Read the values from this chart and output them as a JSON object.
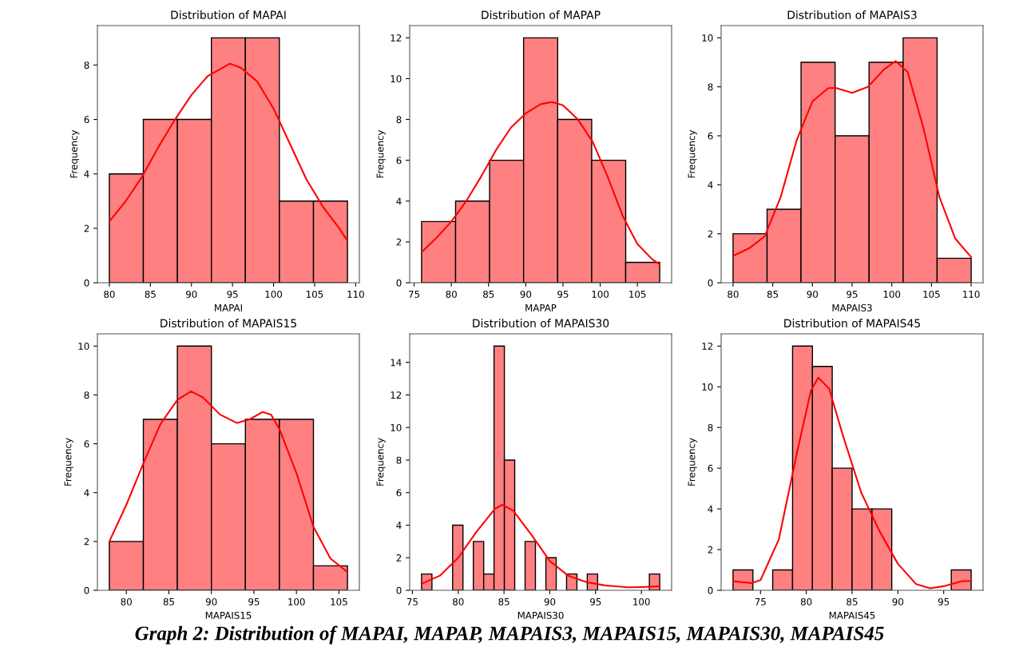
{
  "chart_data": [
    {
      "type": "histogram",
      "title": "Distribution of MAPAI",
      "xlabel": "MAPAI",
      "ylabel": "Frequency",
      "xlim": [
        78.55,
        110.45
      ],
      "ylim": [
        0,
        9.45
      ],
      "xticks": [
        80,
        85,
        90,
        95,
        100,
        105,
        110
      ],
      "yticks": [
        0,
        2,
        4,
        6,
        8
      ],
      "series": [
        {
          "type": "histogram",
          "color": "#ff8080",
          "bins": [
            80,
            84.14,
            88.29,
            92.43,
            96.57,
            100.71,
            104.86,
            109
          ],
          "values": [
            4,
            6,
            6,
            9,
            9,
            3,
            3
          ]
        },
        {
          "type": "line",
          "color": "#ff0000",
          "x": [
            80,
            82,
            84,
            86,
            88,
            90,
            92,
            94.7,
            96,
            98,
            100,
            102,
            104,
            106,
            108,
            109
          ],
          "values": [
            2.25,
            3,
            3.9,
            5,
            6,
            6.9,
            7.6,
            8.05,
            7.9,
            7.4,
            6.4,
            5.1,
            3.8,
            2.8,
            2.0,
            1.55
          ]
        }
      ]
    },
    {
      "type": "histogram",
      "title": "Distribution of MAPAP",
      "xlabel": "MAPAP",
      "ylabel": "Frequency",
      "xlim": [
        74.4,
        109.6
      ],
      "ylim": [
        0,
        12.6
      ],
      "xticks": [
        75,
        80,
        85,
        90,
        95,
        100,
        105
      ],
      "yticks": [
        0,
        2,
        4,
        6,
        8,
        10,
        12
      ],
      "series": [
        {
          "type": "histogram",
          "color": "#ff8080",
          "bins": [
            76,
            80.57,
            85.14,
            89.71,
            94.29,
            98.86,
            103.43,
            108
          ],
          "values": [
            3,
            4,
            6,
            12,
            8,
            6,
            1
          ]
        },
        {
          "type": "line",
          "color": "#ff0000",
          "x": [
            76,
            78,
            80,
            82,
            84,
            86,
            88,
            90,
            92,
            93.5,
            95,
            97,
            99,
            101,
            103,
            105,
            107,
            108
          ],
          "values": [
            1.5,
            2.2,
            3,
            4,
            5.2,
            6.5,
            7.6,
            8.3,
            8.75,
            8.85,
            8.7,
            8.0,
            6.9,
            5.2,
            3.3,
            1.9,
            1.15,
            0.9
          ]
        }
      ]
    },
    {
      "type": "histogram",
      "title": "Distribution of MAPAIS3",
      "xlabel": "MAPAIS3",
      "ylabel": "Frequency",
      "xlim": [
        78.5,
        111.5
      ],
      "ylim": [
        0,
        10.5
      ],
      "xticks": [
        80,
        85,
        90,
        95,
        100,
        105,
        110
      ],
      "yticks": [
        0,
        2,
        4,
        6,
        8,
        10
      ],
      "series": [
        {
          "type": "histogram",
          "color": "#ff8080",
          "bins": [
            80,
            84.29,
            88.57,
            92.86,
            97.14,
            101.43,
            105.71,
            110
          ],
          "values": [
            2,
            3,
            9,
            6,
            9,
            10,
            1
          ]
        },
        {
          "type": "line",
          "color": "#ff0000",
          "x": [
            80,
            82,
            84,
            86,
            88,
            90,
            92,
            93,
            95,
            97,
            99,
            100.5,
            102,
            104,
            106,
            108,
            110
          ],
          "values": [
            1.1,
            1.4,
            1.9,
            3.5,
            5.8,
            7.4,
            7.95,
            7.95,
            7.75,
            8.0,
            8.7,
            9.05,
            8.6,
            6.3,
            3.5,
            1.8,
            1.05
          ]
        }
      ]
    },
    {
      "type": "histogram",
      "title": "Distribution of MAPAIS15",
      "xlabel": "MAPAIS15",
      "ylabel": "Frequency",
      "xlim": [
        76.6,
        107.4
      ],
      "ylim": [
        0,
        10.5
      ],
      "xticks": [
        80,
        85,
        90,
        95,
        100,
        105
      ],
      "yticks": [
        0,
        2,
        4,
        6,
        8,
        10
      ],
      "series": [
        {
          "type": "histogram",
          "color": "#ff8080",
          "bins": [
            78,
            82,
            86,
            90,
            94,
            98,
            102,
            106
          ],
          "values": [
            2,
            7,
            10,
            6,
            7,
            7,
            1
          ]
        },
        {
          "type": "line",
          "color": "#ff0000",
          "x": [
            78,
            80,
            82,
            84,
            86,
            87.6,
            89,
            91,
            93,
            94.5,
            96,
            97,
            98,
            100,
            102,
            104,
            106
          ],
          "values": [
            2,
            3.5,
            5.2,
            6.8,
            7.8,
            8.15,
            7.9,
            7.2,
            6.85,
            7.0,
            7.3,
            7.2,
            6.6,
            4.8,
            2.6,
            1.3,
            0.75
          ]
        }
      ]
    },
    {
      "type": "histogram",
      "title": "Distribution of MAPAIS30",
      "xlabel": "MAPAIS30",
      "ylabel": "Frequency",
      "xlim": [
        74.7,
        103.3
      ],
      "ylim": [
        0,
        15.75
      ],
      "xticks": [
        75,
        80,
        85,
        90,
        95,
        100
      ],
      "yticks": [
        0,
        2,
        4,
        6,
        8,
        10,
        12,
        14
      ],
      "series": [
        {
          "type": "histogram",
          "color": "#ff8080",
          "bins": [
            76,
            77.13,
            78.26,
            79.39,
            80.52,
            81.65,
            82.78,
            83.91,
            85.04,
            86.17,
            87.3,
            88.43,
            89.57,
            90.7,
            91.83,
            92.96,
            94.09,
            95.22,
            96.35,
            97.48,
            98.61,
            99.74,
            100.87,
            102
          ],
          "values": [
            1,
            0,
            0,
            4,
            0,
            3,
            1,
            15,
            8,
            0,
            3,
            0,
            2,
            0,
            1,
            0,
            1,
            0,
            0,
            0,
            0,
            0,
            1
          ]
        },
        {
          "type": "line",
          "color": "#ff0000",
          "x": [
            76,
            78,
            80,
            82,
            84,
            84.8,
            86,
            88,
            90,
            92,
            94,
            96,
            98.5,
            100,
            102
          ],
          "values": [
            0.4,
            0.9,
            2.0,
            3.6,
            5.0,
            5.25,
            4.9,
            3.4,
            1.8,
            0.9,
            0.5,
            0.3,
            0.18,
            0.2,
            0.25
          ]
        }
      ]
    },
    {
      "type": "histogram",
      "title": "Distribution of MAPAIS45",
      "xlabel": "MAPAIS45",
      "ylabel": "Frequency",
      "xlim": [
        70.7,
        99.3
      ],
      "ylim": [
        0,
        12.6
      ],
      "xticks": [
        75,
        80,
        85,
        90,
        95
      ],
      "yticks": [
        0,
        2,
        4,
        6,
        8,
        10,
        12
      ],
      "annotations": [
        "Graph 2: Distribution of MAPAI, MAPAP, MAPAIS3, MAPAIS15, MAPAIS30, MAPAIS45"
      ],
      "series": [
        {
          "type": "histogram",
          "color": "#ff8080",
          "bins": [
            72,
            74.17,
            76.33,
            78.5,
            80.67,
            82.83,
            85,
            87.17,
            89.33,
            91.5,
            93.67,
            95.83,
            98
          ],
          "values": [
            1,
            0,
            1,
            12,
            11,
            6,
            4,
            4,
            0,
            0,
            0,
            1
          ]
        },
        {
          "type": "line",
          "color": "#ff0000",
          "x": [
            72,
            74,
            75,
            77,
            79,
            80.5,
            81.3,
            82.5,
            84,
            86,
            88,
            90,
            92,
            93.5,
            95,
            97,
            98
          ],
          "values": [
            0.45,
            0.35,
            0.5,
            2.5,
            6.8,
            9.8,
            10.45,
            9.9,
            7.6,
            4.8,
            2.9,
            1.3,
            0.3,
            0.1,
            0.2,
            0.45,
            0.45
          ]
        }
      ]
    }
  ]
}
